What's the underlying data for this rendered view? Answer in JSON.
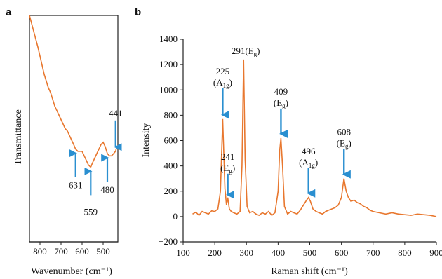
{
  "chart_data": [
    {
      "panel": "a",
      "type": "line",
      "xlabel": "Wavenumber (cm⁻¹)",
      "ylabel": "Transmittance",
      "x_reversed": true,
      "xlim": [
        850,
        430
      ],
      "xticks": [
        800,
        700,
        600,
        500
      ],
      "ylim": [
        0,
        1
      ],
      "color": "#e8772e",
      "series": [
        {
          "x": [
            850,
            830,
            810,
            790,
            780,
            770,
            760,
            750,
            740,
            730,
            720,
            710,
            700,
            690,
            680,
            670,
            660,
            650,
            640,
            631,
            620,
            610,
            600,
            590,
            580,
            570,
            559,
            550,
            540,
            530,
            520,
            510,
            500,
            490,
            480,
            470,
            460,
            450,
            441,
            435,
            430
          ],
          "y": [
            1.0,
            0.93,
            0.86,
            0.78,
            0.74,
            0.71,
            0.68,
            0.66,
            0.63,
            0.6,
            0.58,
            0.56,
            0.54,
            0.52,
            0.5,
            0.49,
            0.47,
            0.45,
            0.43,
            0.41,
            0.4,
            0.4,
            0.4,
            0.38,
            0.36,
            0.34,
            0.33,
            0.35,
            0.37,
            0.39,
            0.41,
            0.43,
            0.44,
            0.42,
            0.39,
            0.38,
            0.38,
            0.39,
            0.4,
            0.42,
            0.42
          ]
        }
      ],
      "annotations": [
        {
          "label": "631",
          "x": 631,
          "direction": "up"
        },
        {
          "label": "559",
          "x": 559,
          "direction": "up"
        },
        {
          "label": "480",
          "x": 480,
          "direction": "up"
        },
        {
          "label": "441",
          "x": 441,
          "direction": "down"
        }
      ]
    },
    {
      "panel": "b",
      "type": "line",
      "xlabel": "Raman shift (cm⁻¹)",
      "ylabel": "Intensity",
      "xlim": [
        100,
        900
      ],
      "ylim": [
        -200,
        1400
      ],
      "xticks": [
        100,
        200,
        300,
        400,
        500,
        600,
        700,
        800,
        900
      ],
      "yticks": [
        -200,
        0,
        200,
        400,
        600,
        800,
        1000,
        1200,
        1400
      ],
      "color": "#e8772e",
      "series": [
        {
          "x": [
            130,
            140,
            150,
            160,
            170,
            180,
            190,
            200,
            210,
            218,
            225,
            232,
            237,
            241,
            246,
            252,
            260,
            270,
            280,
            286,
            291,
            296,
            302,
            310,
            320,
            330,
            340,
            350,
            360,
            370,
            380,
            390,
            400,
            405,
            409,
            414,
            420,
            430,
            440,
            450,
            460,
            470,
            480,
            490,
            496,
            502,
            510,
            520,
            530,
            540,
            550,
            560,
            570,
            580,
            590,
            600,
            608,
            615,
            622,
            630,
            640,
            650,
            660,
            670,
            680,
            690,
            700,
            720,
            740,
            760,
            780,
            800,
            820,
            840,
            860,
            880,
            900
          ],
          "y": [
            20,
            35,
            10,
            40,
            30,
            20,
            45,
            40,
            60,
            200,
            770,
            220,
            90,
            150,
            60,
            40,
            30,
            20,
            40,
            400,
            1240,
            450,
            80,
            30,
            40,
            20,
            10,
            30,
            20,
            40,
            10,
            30,
            200,
            520,
            620,
            400,
            80,
            20,
            40,
            30,
            20,
            50,
            90,
            130,
            150,
            120,
            60,
            40,
            30,
            20,
            40,
            50,
            60,
            70,
            90,
            150,
            300,
            200,
            150,
            120,
            130,
            110,
            100,
            80,
            70,
            50,
            40,
            30,
            20,
            30,
            20,
            15,
            10,
            20,
            15,
            10,
            0
          ]
        }
      ],
      "annotations": [
        {
          "label": "225",
          "sub": "(A",
          "subscript": "1g",
          "close": ")",
          "x": 225
        },
        {
          "label": "241",
          "sub": "(E",
          "subscript": "g",
          "close": ")",
          "x": 241
        },
        {
          "label": "291(E",
          "subscript": "g",
          "close": ")",
          "x": 291
        },
        {
          "label": "409",
          "sub": "(E",
          "subscript": "g",
          "close": ")",
          "x": 409
        },
        {
          "label": "496",
          "sub": "(A",
          "subscript": "1g",
          "close": ")",
          "x": 496
        },
        {
          "label": "608",
          "sub": "(E",
          "subscript": "g",
          "close": ")",
          "x": 608
        }
      ]
    }
  ],
  "labels": {
    "panel_a": "a",
    "panel_b": "b"
  }
}
